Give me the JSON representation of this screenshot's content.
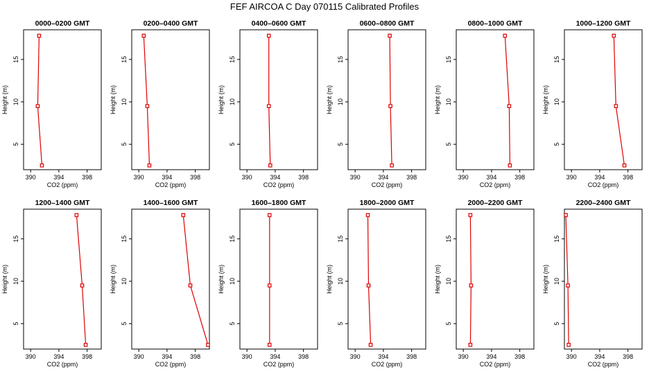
{
  "chart_data": {
    "type": "line",
    "title": "FEF AIRCOA C  Day 070115  Calibrated Profiles",
    "xlabel": "CO2 (ppm)",
    "ylabel": "Height (m)",
    "xlim": [
      389,
      400
    ],
    "ylim": [
      2,
      18.5
    ],
    "xticks": [
      390,
      394,
      398
    ],
    "yticks": [
      5,
      10,
      15
    ],
    "line_color": "#dd0000",
    "panels": [
      {
        "title": "0000–0200 GMT",
        "points": [
          {
            "x": 391.6,
            "y": 2.5
          },
          {
            "x": 391.0,
            "y": 9.5
          },
          {
            "x": 391.2,
            "y": 17.8
          }
        ]
      },
      {
        "title": "0200–0400 GMT",
        "points": [
          {
            "x": 391.5,
            "y": 2.5
          },
          {
            "x": 391.2,
            "y": 9.5
          },
          {
            "x": 390.7,
            "y": 17.8
          }
        ]
      },
      {
        "title": "0400–0600 GMT",
        "points": [
          {
            "x": 393.3,
            "y": 2.5
          },
          {
            "x": 393.1,
            "y": 9.5
          },
          {
            "x": 393.1,
            "y": 17.8
          }
        ]
      },
      {
        "title": "0600–0800 GMT",
        "points": [
          {
            "x": 395.2,
            "y": 2.5
          },
          {
            "x": 395.0,
            "y": 9.5
          },
          {
            "x": 394.9,
            "y": 17.8
          }
        ]
      },
      {
        "title": "0800–1000 GMT",
        "points": [
          {
            "x": 396.6,
            "y": 2.5
          },
          {
            "x": 396.5,
            "y": 9.5
          },
          {
            "x": 395.9,
            "y": 17.8
          }
        ]
      },
      {
        "title": "1000–1200 GMT",
        "points": [
          {
            "x": 397.5,
            "y": 2.5
          },
          {
            "x": 396.3,
            "y": 9.5
          },
          {
            "x": 396.0,
            "y": 17.8
          }
        ]
      },
      {
        "title": "1200–1400 GMT",
        "points": [
          {
            "x": 397.8,
            "y": 2.5
          },
          {
            "x": 397.3,
            "y": 9.5
          },
          {
            "x": 396.5,
            "y": 17.8
          }
        ]
      },
      {
        "title": "1400–1600 GMT",
        "points": [
          {
            "x": 399.8,
            "y": 2.5
          },
          {
            "x": 397.3,
            "y": 9.5
          },
          {
            "x": 396.3,
            "y": 17.8
          }
        ]
      },
      {
        "title": "1600–1800 GMT",
        "points": [
          {
            "x": 393.2,
            "y": 2.5
          },
          {
            "x": 393.2,
            "y": 9.5
          },
          {
            "x": 393.2,
            "y": 17.8
          }
        ]
      },
      {
        "title": "1800–2000 GMT",
        "points": [
          {
            "x": 392.2,
            "y": 2.5
          },
          {
            "x": 391.9,
            "y": 9.5
          },
          {
            "x": 391.8,
            "y": 17.8
          }
        ]
      },
      {
        "title": "2000–2200 GMT",
        "points": [
          {
            "x": 391.0,
            "y": 2.5
          },
          {
            "x": 391.1,
            "y": 9.5
          },
          {
            "x": 391.0,
            "y": 17.8
          }
        ]
      },
      {
        "title": "2200–2400 GMT",
        "points": [
          {
            "x": 389.6,
            "y": 2.5
          },
          {
            "x": 389.5,
            "y": 9.5
          },
          {
            "x": 389.2,
            "y": 17.8
          }
        ]
      }
    ]
  }
}
